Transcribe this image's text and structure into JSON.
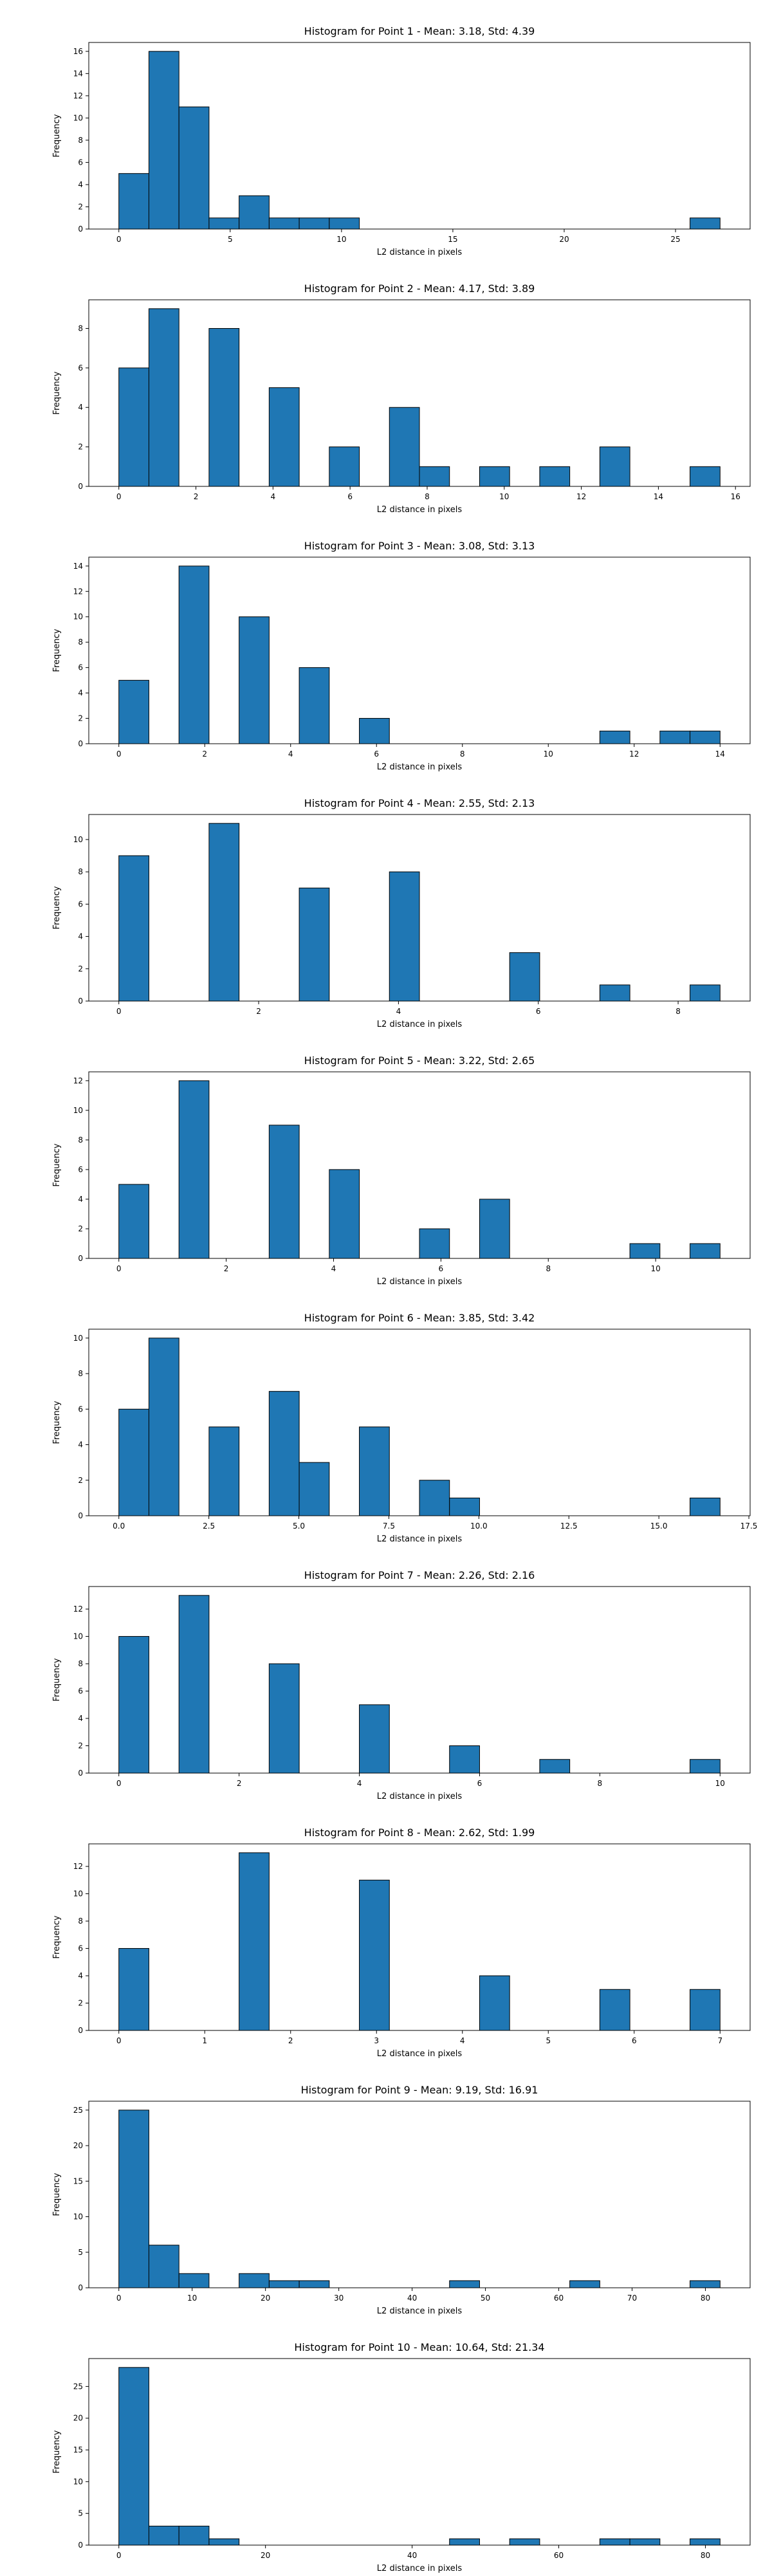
{
  "chart_data": [
    {
      "type": "bar",
      "title": "Histogram for Point 1 - Mean: 3.18, Std: 4.39",
      "xlabel": "L2 distance in pixels",
      "ylabel": "Frequency",
      "xlim": [
        -1.35,
        28.35
      ],
      "ylim": [
        0,
        16.8
      ],
      "xticks": [
        0,
        5,
        10,
        15,
        20,
        25
      ],
      "yticks": [
        0,
        2,
        4,
        6,
        8,
        10,
        12,
        14,
        16
      ],
      "bin_edges": [
        0,
        1.35,
        2.7,
        4.05,
        5.4,
        6.75,
        8.1,
        9.45,
        10.8,
        12.15,
        13.5,
        14.85,
        16.2,
        17.55,
        18.9,
        20.25,
        21.6,
        22.95,
        24.3,
        25.65,
        27.0
      ],
      "values": [
        5,
        16,
        11,
        1,
        3,
        1,
        1,
        1,
        0,
        0,
        0,
        0,
        0,
        0,
        0,
        0,
        0,
        0,
        0,
        1
      ]
    },
    {
      "type": "bar",
      "title": "Histogram for Point 2 - Mean: 4.17, Std: 3.89",
      "xlabel": "L2 distance in pixels",
      "ylabel": "Frequency",
      "xlim": [
        -0.78,
        16.38
      ],
      "ylim": [
        0,
        9.45
      ],
      "xticks": [
        0,
        2,
        4,
        6,
        8,
        10,
        12,
        14,
        16
      ],
      "yticks": [
        0,
        2,
        4,
        6,
        8
      ],
      "bin_edges": [
        0,
        0.78,
        1.56,
        2.34,
        3.12,
        3.9,
        4.68,
        5.46,
        6.24,
        7.02,
        7.8,
        8.58,
        9.36,
        10.14,
        10.92,
        11.7,
        12.48,
        13.26,
        14.04,
        14.82,
        15.6
      ],
      "values": [
        6,
        9,
        0,
        8,
        0,
        5,
        0,
        2,
        0,
        4,
        1,
        0,
        1,
        0,
        1,
        0,
        2,
        0,
        0,
        1
      ]
    },
    {
      "type": "bar",
      "title": "Histogram for Point 3 - Mean: 3.08, Std: 3.13",
      "xlabel": "L2 distance in pixels",
      "ylabel": "Frequency",
      "xlim": [
        -0.7,
        14.7
      ],
      "ylim": [
        0,
        14.7
      ],
      "xticks": [
        0,
        2,
        4,
        6,
        8,
        10,
        12,
        14
      ],
      "yticks": [
        0,
        2,
        4,
        6,
        8,
        10,
        12,
        14
      ],
      "bin_edges": [
        0,
        0.7,
        1.4,
        2.1,
        2.8,
        3.5,
        4.2,
        4.9,
        5.6,
        6.3,
        7.0,
        7.7,
        8.4,
        9.1,
        9.8,
        10.5,
        11.2,
        11.9,
        12.6,
        13.3,
        14.0
      ],
      "values": [
        5,
        0,
        14,
        0,
        10,
        0,
        6,
        0,
        2,
        0,
        0,
        0,
        0,
        0,
        0,
        0,
        1,
        0,
        1,
        1
      ]
    },
    {
      "type": "bar",
      "title": "Histogram for Point 4 - Mean: 2.55, Std: 2.13",
      "xlabel": "L2 distance in pixels",
      "ylabel": "Frequency",
      "xlim": [
        -0.43,
        9.03
      ],
      "ylim": [
        0,
        11.55
      ],
      "xticks": [
        0,
        2,
        4,
        6,
        8
      ],
      "yticks": [
        0,
        2,
        4,
        6,
        8,
        10
      ],
      "bin_edges": [
        0,
        0.43,
        0.86,
        1.29,
        1.72,
        2.15,
        2.58,
        3.01,
        3.44,
        3.87,
        4.3,
        4.73,
        5.16,
        5.59,
        6.02,
        6.45,
        6.88,
        7.31,
        7.74,
        8.17,
        8.6
      ],
      "values": [
        9,
        0,
        0,
        11,
        0,
        0,
        7,
        0,
        0,
        8,
        0,
        0,
        0,
        3,
        0,
        0,
        1,
        0,
        0,
        1
      ]
    },
    {
      "type": "bar",
      "title": "Histogram for Point 5 - Mean: 3.22, Std: 2.65",
      "xlabel": "L2 distance in pixels",
      "ylabel": "Frequency",
      "xlim": [
        -0.56,
        11.76
      ],
      "ylim": [
        0,
        12.6
      ],
      "xticks": [
        0,
        2,
        4,
        6,
        8,
        10
      ],
      "yticks": [
        0,
        2,
        4,
        6,
        8,
        10,
        12
      ],
      "bin_edges": [
        0,
        0.56,
        1.12,
        1.68,
        2.24,
        2.8,
        3.36,
        3.92,
        4.48,
        5.04,
        5.6,
        6.16,
        6.72,
        7.28,
        7.84,
        8.4,
        8.96,
        9.52,
        10.08,
        10.64,
        11.2
      ],
      "values": [
        5,
        0,
        12,
        0,
        0,
        9,
        0,
        6,
        0,
        0,
        2,
        0,
        4,
        0,
        0,
        0,
        0,
        1,
        0,
        1
      ]
    },
    {
      "type": "bar",
      "title": "Histogram for Point 6 - Mean: 3.85, Std: 3.42",
      "xlabel": "L2 distance in pixels",
      "ylabel": "Frequency",
      "xlim": [
        -0.835,
        17.535
      ],
      "ylim": [
        0,
        10.5
      ],
      "xticks": [
        0.0,
        2.5,
        5.0,
        7.5,
        10.0,
        12.5,
        15.0,
        17.5
      ],
      "xtick_labels": [
        "0.0",
        "2.5",
        "5.0",
        "7.5",
        "10.0",
        "12.5",
        "15.0",
        "17.5"
      ],
      "yticks": [
        0,
        2,
        4,
        6,
        8,
        10
      ],
      "bin_edges": [
        0,
        0.835,
        1.67,
        2.505,
        3.34,
        4.175,
        5.01,
        5.845,
        6.68,
        7.515,
        8.35,
        9.185,
        10.02,
        10.855,
        11.69,
        12.525,
        13.36,
        14.195,
        15.03,
        15.865,
        16.7
      ],
      "values": [
        6,
        10,
        0,
        5,
        0,
        7,
        3,
        0,
        5,
        0,
        2,
        1,
        0,
        0,
        0,
        0,
        0,
        0,
        0,
        1
      ]
    },
    {
      "type": "bar",
      "title": "Histogram for Point 7 - Mean: 2.26, Std: 2.16",
      "xlabel": "L2 distance in pixels",
      "ylabel": "Frequency",
      "xlim": [
        -0.5,
        10.5
      ],
      "ylim": [
        0,
        13.65
      ],
      "xticks": [
        0,
        2,
        4,
        6,
        8,
        10
      ],
      "yticks": [
        0,
        2,
        4,
        6,
        8,
        10,
        12
      ],
      "bin_edges": [
        0,
        0.5,
        1.0,
        1.5,
        2.0,
        2.5,
        3.0,
        3.5,
        4.0,
        4.5,
        5.0,
        5.5,
        6.0,
        6.5,
        7.0,
        7.5,
        8.0,
        8.5,
        9.0,
        9.5,
        10.0
      ],
      "values": [
        10,
        0,
        13,
        0,
        0,
        8,
        0,
        0,
        5,
        0,
        0,
        2,
        0,
        0,
        1,
        0,
        0,
        0,
        0,
        1
      ]
    },
    {
      "type": "bar",
      "title": "Histogram for Point 8 - Mean: 2.62, Std: 1.99",
      "xlabel": "L2 distance in pixels",
      "ylabel": "Frequency",
      "xlim": [
        -0.35,
        7.35
      ],
      "ylim": [
        0,
        13.65
      ],
      "xticks": [
        0,
        1,
        2,
        3,
        4,
        5,
        6,
        7
      ],
      "yticks": [
        0,
        2,
        4,
        6,
        8,
        10,
        12
      ],
      "bin_edges": [
        0,
        0.35,
        0.7,
        1.05,
        1.4,
        1.75,
        2.1,
        2.45,
        2.8,
        3.15,
        3.5,
        3.85,
        4.2,
        4.55,
        4.9,
        5.25,
        5.6,
        5.95,
        6.3,
        6.65,
        7.0
      ],
      "values": [
        6,
        0,
        0,
        0,
        13,
        0,
        0,
        0,
        11,
        0,
        0,
        0,
        4,
        0,
        0,
        0,
        3,
        0,
        0,
        3
      ]
    },
    {
      "type": "bar",
      "title": "Histogram for Point 9 - Mean: 9.19, Std: 16.91",
      "xlabel": "L2 distance in pixels",
      "ylabel": "Frequency",
      "xlim": [
        -4.1,
        86.1
      ],
      "ylim": [
        0,
        26.25
      ],
      "xticks": [
        0,
        10,
        20,
        30,
        40,
        50,
        60,
        70,
        80
      ],
      "yticks": [
        0,
        5,
        10,
        15,
        20,
        25
      ],
      "bin_edges": [
        0,
        4.1,
        8.2,
        12.3,
        16.4,
        20.5,
        24.6,
        28.7,
        32.8,
        36.9,
        41.0,
        45.1,
        49.2,
        53.3,
        57.4,
        61.5,
        65.6,
        69.7,
        73.8,
        77.9,
        82.0
      ],
      "values": [
        25,
        6,
        2,
        0,
        2,
        1,
        1,
        0,
        0,
        0,
        0,
        1,
        0,
        0,
        0,
        1,
        0,
        0,
        0,
        1
      ]
    },
    {
      "type": "bar",
      "title": "Histogram for Point 10 - Mean: 10.64, Std: 21.34",
      "xlabel": "L2 distance in pixels",
      "ylabel": "Frequency",
      "xlim": [
        -4.1,
        86.1
      ],
      "ylim": [
        0,
        29.4
      ],
      "xticks": [
        0,
        20,
        40,
        60,
        80
      ],
      "yticks": [
        0,
        5,
        10,
        15,
        20,
        25
      ],
      "bin_edges": [
        0,
        4.1,
        8.2,
        12.3,
        16.4,
        20.5,
        24.6,
        28.7,
        32.8,
        36.9,
        41.0,
        45.1,
        49.2,
        53.3,
        57.4,
        61.5,
        65.6,
        69.7,
        73.8,
        77.9,
        82.0
      ],
      "values": [
        28,
        3,
        3,
        1,
        0,
        0,
        0,
        0,
        0,
        0,
        0,
        1,
        0,
        1,
        0,
        0,
        1,
        1,
        0,
        1
      ]
    }
  ],
  "colors": {
    "bar_fill": "#1f77b4",
    "bar_edge": "#000000",
    "axis": "#000000",
    "background": "#ffffff"
  }
}
